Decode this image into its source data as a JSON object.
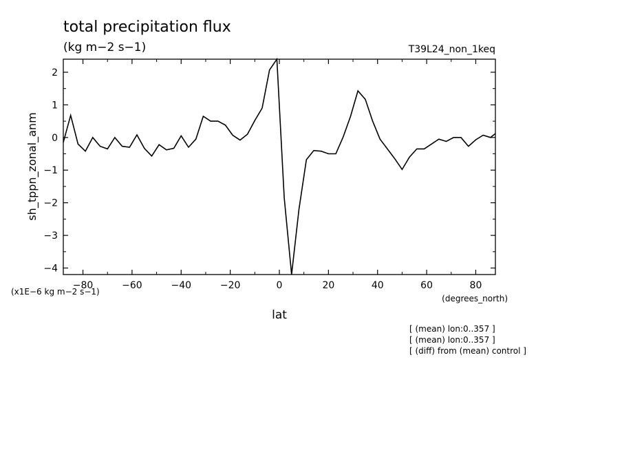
{
  "chart_data": {
    "type": "line",
    "title": "total precipitation flux",
    "units": "(kg m−2 s−1)",
    "experiment": "T39L24_non_1keq",
    "ylabel": "sh_tppn_zonal_anm",
    "yscale_note": "(x1E−6 kg m−2 s−1)",
    "xlabel": "lat",
    "xunits": "(degrees_north)",
    "xlim": [
      -88,
      88
    ],
    "ylim": [
      -4.2,
      2.4
    ],
    "xticks": [
      -80,
      -60,
      -40,
      -20,
      0,
      20,
      40,
      60,
      80
    ],
    "xtick_labels": [
      "−80",
      "−60",
      "−40",
      "−20",
      "0",
      "20",
      "40",
      "60",
      "80"
    ],
    "yticks": [
      -4,
      -3,
      -2,
      -1,
      0,
      1,
      2
    ],
    "ytick_labels": [
      "−4",
      "−3",
      "−2",
      "−1",
      "0",
      "1",
      "2"
    ],
    "notes": [
      "[ (mean) lon:0..357 ]",
      "[ (mean) lon:0..357 ]",
      "[ (diff) from (mean) control ]"
    ],
    "series": [
      {
        "x": [
          -88,
          -85,
          -82,
          -79,
          -76,
          -73,
          -70,
          -67,
          -64,
          -61,
          -58,
          -55,
          -52,
          -49,
          -46,
          -43,
          -40,
          -37,
          -34,
          -31,
          -28,
          -25,
          -22,
          -19,
          -16,
          -13,
          -10,
          -7,
          -4,
          -1,
          2,
          5,
          8,
          11,
          14,
          17,
          20,
          23,
          26,
          29,
          32,
          35,
          38,
          41,
          44,
          47,
          50,
          53,
          56,
          59,
          62,
          65,
          68,
          71,
          74,
          77,
          80,
          83,
          86,
          88
        ],
        "y": [
          -0.15,
          0.68,
          -0.2,
          -0.42,
          0.0,
          -0.27,
          -0.35,
          0.0,
          -0.27,
          -0.3,
          0.08,
          -0.33,
          -0.57,
          -0.22,
          -0.38,
          -0.33,
          0.05,
          -0.3,
          -0.05,
          0.65,
          0.5,
          0.5,
          0.38,
          0.07,
          -0.08,
          0.1,
          0.52,
          0.9,
          2.07,
          2.4,
          -1.85,
          -4.2,
          -2.2,
          -0.68,
          -0.4,
          -0.42,
          -0.5,
          -0.5,
          0.02,
          0.65,
          1.43,
          1.17,
          0.5,
          -0.05,
          -0.35,
          -0.65,
          -0.98,
          -0.6,
          -0.35,
          -0.35,
          -0.2,
          -0.05,
          -0.12,
          0.0,
          0.0,
          -0.27,
          -0.07,
          0.07,
          0.0,
          0.12
        ]
      }
    ]
  }
}
